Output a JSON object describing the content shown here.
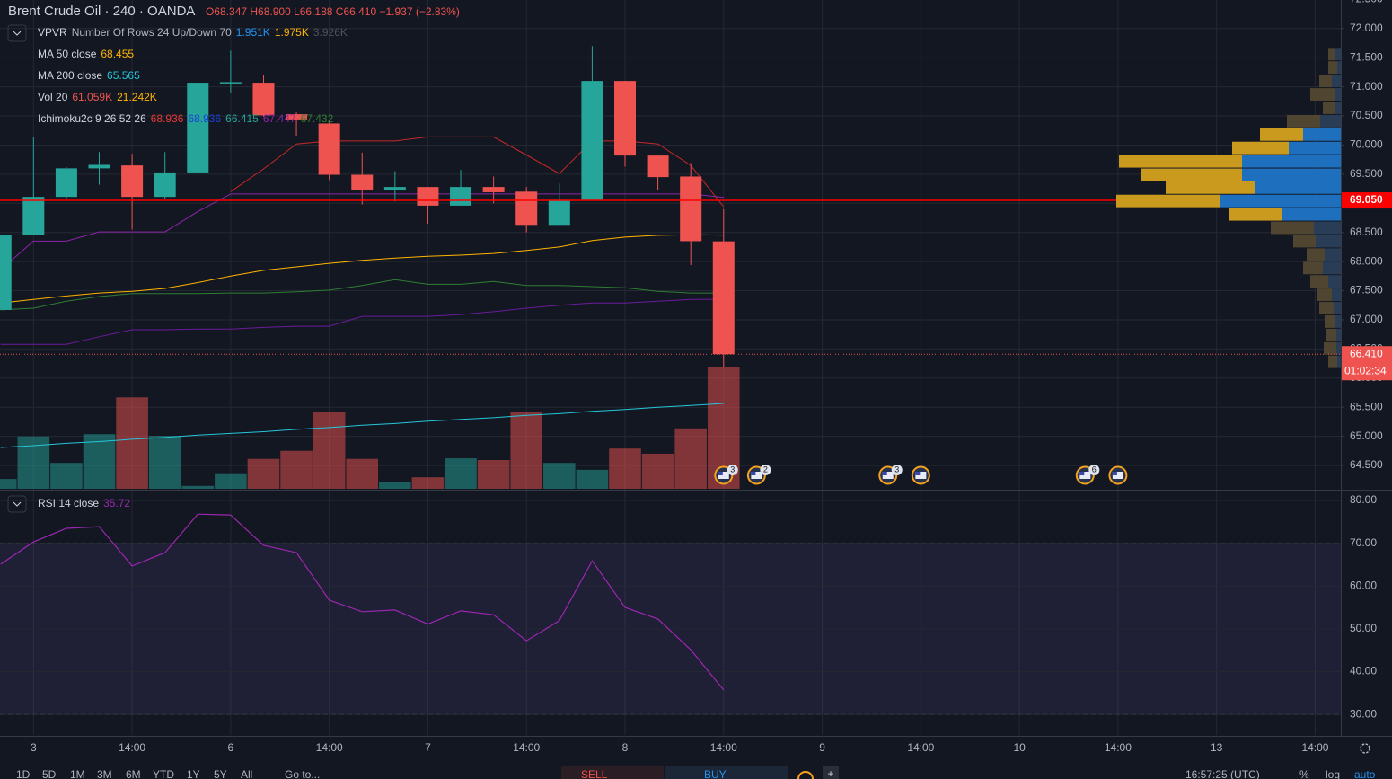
{
  "header": {
    "title": "Brent Crude Oil · 240 · OANDA",
    "quote": "O68.347 H68.900 L66.188 C66.410 −1.937 (−2.83%)"
  },
  "legends": [
    {
      "label": "VPVR",
      "params": "Number Of Rows 24 Up/Down 70",
      "values": [
        {
          "text": "1.951K",
          "color": "#2196f3"
        },
        {
          "text": "1.975K",
          "color": "#ffb300"
        },
        {
          "text": "3.926K",
          "color": "#50535e"
        }
      ]
    },
    {
      "label": "MA 50 close",
      "values": [
        {
          "text": "68.455",
          "color": "#ffb300"
        }
      ]
    },
    {
      "label": "MA 200 close",
      "values": [
        {
          "text": "65.565",
          "color": "#26c6da"
        }
      ]
    },
    {
      "label": "Vol 20",
      "values": [
        {
          "text": "61.059K",
          "color": "#ef5350"
        },
        {
          "text": "21.242K",
          "color": "#ffb300"
        }
      ]
    },
    {
      "label": "Ichimoku2c 9 26 52 26",
      "values": [
        {
          "text": "68.936",
          "color": "#e53935"
        },
        {
          "text": "68.936",
          "color": "#1e40d8"
        },
        {
          "text": "66.415",
          "color": "#26a69a"
        },
        {
          "text": "67.447",
          "color": "#8e24aa"
        },
        {
          "text": "67.432",
          "color": "#2e7d32"
        }
      ]
    }
  ],
  "chart_data": [
    {
      "type": "candlestick",
      "open": [
        67.17,
        68.45,
        69.11,
        69.6,
        69.65,
        69.11,
        69.53,
        71.06,
        71.07,
        70.53,
        70.37,
        69.49,
        69.22,
        69.28,
        68.96,
        69.28,
        69.2,
        68.63,
        69.06,
        71.1,
        69.82,
        69.46,
        68.347
      ],
      "high": [
        68.45,
        70.14,
        69.62,
        69.88,
        69.85,
        69.88,
        71.07,
        71.62,
        71.2,
        70.56,
        70.42,
        69.87,
        69.55,
        69.28,
        69.57,
        69.46,
        69.28,
        69.34,
        71.7,
        71.1,
        69.82,
        69.69,
        68.9
      ],
      "low": [
        67.17,
        68.45,
        69.08,
        69.32,
        68.55,
        69.08,
        69.53,
        70.9,
        70.49,
        70.16,
        69.4,
        68.98,
        69.03,
        68.65,
        68.96,
        69.0,
        68.5,
        68.63,
        69.06,
        69.63,
        69.23,
        67.94,
        66.188
      ],
      "close": [
        68.45,
        69.11,
        69.6,
        69.66,
        69.11,
        69.53,
        71.07,
        71.08,
        70.51,
        70.44,
        69.49,
        69.22,
        69.28,
        68.96,
        69.28,
        69.19,
        68.63,
        69.06,
        71.1,
        69.82,
        69.45,
        68.35,
        66.41
      ],
      "up_color": "#26a69a",
      "down_color": "#ef5350",
      "volume": [
        1.7,
        9.1,
        4.5,
        9.5,
        15.9,
        9.2,
        0.5,
        2.7,
        5.2,
        6.6,
        13.3,
        5.2,
        1.1,
        2.0,
        5.3,
        5.0,
        13.3,
        4.5,
        3.3,
        7.0,
        6.1,
        10.5,
        21.2
      ],
      "volume_lim": [
        0,
        85
      ],
      "series": [
        {
          "color": "#2e7d32",
          "values": [
            67.17,
            67.2,
            67.32,
            67.4,
            67.45,
            67.45,
            67.45,
            67.46,
            67.46,
            67.48,
            67.51,
            67.59,
            67.69,
            67.61,
            67.61,
            67.66,
            67.59,
            67.59,
            67.57,
            67.55,
            67.49,
            67.46,
            67.46
          ]
        },
        {
          "color": "#6a1b9a",
          "values": [
            66.58,
            66.58,
            66.58,
            66.71,
            66.83,
            66.83,
            66.84,
            66.84,
            66.87,
            66.89,
            66.89,
            67.06,
            67.06,
            67.06,
            67.09,
            67.14,
            67.2,
            67.25,
            67.29,
            67.29,
            67.32,
            67.35,
            67.35
          ]
        },
        {
          "color": "#26c6da",
          "values": [
            64.81,
            64.84,
            64.88,
            64.91,
            64.95,
            64.98,
            65.02,
            65.05,
            65.08,
            65.12,
            65.15,
            65.19,
            65.22,
            65.26,
            65.29,
            65.32,
            65.36,
            65.39,
            65.43,
            65.46,
            65.5,
            65.53,
            65.565
          ]
        },
        {
          "color": "#ffb300",
          "values": [
            67.29,
            67.35,
            67.41,
            67.46,
            67.49,
            67.54,
            67.64,
            67.75,
            67.85,
            67.91,
            67.97,
            68.02,
            68.06,
            68.09,
            68.11,
            68.14,
            68.19,
            68.25,
            68.36,
            68.42,
            68.45,
            68.46,
            68.455
          ]
        },
        {
          "color": "#8e24aa",
          "values": [
            67.86,
            68.35,
            68.35,
            68.51,
            68.51,
            68.51,
            68.86,
            69.16,
            69.16,
            69.16,
            69.16,
            69.16,
            69.16,
            69.16,
            69.16,
            69.16,
            69.16,
            69.16,
            69.16,
            69.16,
            69.16,
            69.16,
            69.1
          ]
        },
        {
          "color": "#c62828",
          "values": [
            null,
            null,
            null,
            null,
            null,
            null,
            null,
            69.2,
            69.59,
            70.02,
            70.07,
            70.07,
            70.07,
            70.14,
            70.14,
            70.14,
            69.83,
            69.51,
            70.07,
            70.07,
            70.02,
            69.65,
            68.94
          ]
        }
      ],
      "xlim": [
        -0.02,
        40.78
      ],
      "xticks": [
        {
          "value": 1,
          "label": "3"
        },
        {
          "value": 4,
          "label": "14:00"
        },
        {
          "value": 7,
          "label": "6"
        },
        {
          "value": 10,
          "label": "14:00"
        },
        {
          "value": 13,
          "label": "7"
        },
        {
          "value": 16,
          "label": "14:00"
        },
        {
          "value": 19,
          "label": "8"
        },
        {
          "value": 22,
          "label": "14:00"
        },
        {
          "value": 25,
          "label": "9"
        },
        {
          "value": 28,
          "label": "14:00"
        },
        {
          "value": 31,
          "label": "10"
        },
        {
          "value": 34,
          "label": "14:00"
        },
        {
          "value": 37,
          "label": "13"
        },
        {
          "value": 40,
          "label": "14:00"
        }
      ],
      "ylim": [
        64.1,
        72.49
      ],
      "yticks": [
        {
          "value": 72.5,
          "label": "72.500"
        },
        {
          "value": 72,
          "label": "72.000"
        },
        {
          "value": 71.5,
          "label": "71.500"
        },
        {
          "value": 71,
          "label": "71.000"
        },
        {
          "value": 70.5,
          "label": "70.500"
        },
        {
          "value": 70,
          "label": "70.000"
        },
        {
          "value": 69.5,
          "label": "69.500"
        },
        {
          "value": 69,
          "label": "69.000"
        },
        {
          "value": 68.5,
          "label": "68.500"
        },
        {
          "value": 68,
          "label": "68.000"
        },
        {
          "value": 67.5,
          "label": "67.500"
        },
        {
          "value": 67,
          "label": "67.000"
        },
        {
          "value": 66.5,
          "label": "66.500"
        },
        {
          "value": 66,
          "label": "66.000"
        },
        {
          "value": 65.5,
          "label": "65.500"
        },
        {
          "value": 65,
          "label": "65.000"
        },
        {
          "value": 64.5,
          "label": "64.500"
        }
      ],
      "grid": true,
      "hline": {
        "value": 69.05,
        "label": "69.050",
        "color": "#ff0000"
      },
      "last_price": {
        "value": 66.41,
        "label": "66.410",
        "countdown": "01:02:34",
        "color": "#ef5350"
      },
      "profile": {
        "up_color": "#c99a1e",
        "down_color": "#1e6fbe",
        "dim_up_color": "#4f4530",
        "dim_down_color": "#2a3d57",
        "value_area": [
          68.81,
          70.18
        ],
        "rows": [
          {
            "price": 71.56,
            "up": 8,
            "down": 6
          },
          {
            "price": 71.33,
            "up": 10,
            "down": 4
          },
          {
            "price": 71.1,
            "up": 14,
            "down": 10
          },
          {
            "price": 70.87,
            "up": 28,
            "down": 6
          },
          {
            "price": 70.64,
            "up": 14,
            "down": 6
          },
          {
            "price": 70.41,
            "up": 37,
            "down": 23
          },
          {
            "price": 70.18,
            "up": 48,
            "down": 42
          },
          {
            "price": 69.95,
            "up": 63,
            "down": 58
          },
          {
            "price": 69.72,
            "up": 137,
            "down": 110
          },
          {
            "price": 69.49,
            "up": 113,
            "down": 110
          },
          {
            "price": 69.27,
            "up": 100,
            "down": 95
          },
          {
            "price": 69.04,
            "up": 115,
            "down": 135
          },
          {
            "price": 68.81,
            "up": 60,
            "down": 65
          },
          {
            "price": 68.58,
            "up": 48,
            "down": 30
          },
          {
            "price": 68.35,
            "up": 25,
            "down": 28
          },
          {
            "price": 68.12,
            "up": 20,
            "down": 18
          },
          {
            "price": 67.89,
            "up": 22,
            "down": 20
          },
          {
            "price": 67.66,
            "up": 20,
            "down": 14
          },
          {
            "price": 67.43,
            "up": 16,
            "down": 10
          },
          {
            "price": 67.2,
            "up": 16,
            "down": 8
          },
          {
            "price": 66.97,
            "up": 12,
            "down": 6
          },
          {
            "price": 66.74,
            "up": 12,
            "down": 5
          },
          {
            "price": 66.51,
            "up": 14,
            "down": 5
          },
          {
            "price": 66.28,
            "up": 10,
            "down": 4
          }
        ]
      },
      "events": [
        {
          "bar": 22,
          "badge": "3"
        },
        {
          "bar": 23,
          "badge": "2"
        },
        {
          "bar": 27,
          "badge": "3"
        },
        {
          "bar": 28
        },
        {
          "bar": 33,
          "badge": "6"
        },
        {
          "bar": 34
        }
      ]
    },
    {
      "type": "line",
      "legend": "RSI 14 close",
      "series": [
        {
          "color": "#9c27b0",
          "values": [
            65.1,
            70.3,
            73.5,
            73.9,
            64.7,
            67.8,
            76.8,
            76.6,
            69.5,
            67.8,
            56.7,
            54.0,
            54.4,
            51.1,
            54.2,
            53.3,
            47.2,
            51.9,
            65.9,
            55.0,
            52.3,
            45.1,
            35.72
          ]
        }
      ],
      "band": [
        30,
        70
      ],
      "ylim": [
        25.2,
        82.1
      ],
      "yticks": [
        {
          "value": 80,
          "label": "80.00"
        },
        {
          "value": 70,
          "label": "70.00"
        },
        {
          "value": 60,
          "label": "60.00"
        },
        {
          "value": 50,
          "label": "50.00"
        },
        {
          "value": 40,
          "label": "40.00"
        },
        {
          "value": 30,
          "label": "30.00"
        }
      ]
    }
  ],
  "toolbar": {
    "ranges": [
      "1D",
      "5D",
      "1M",
      "3M",
      "6M",
      "YTD",
      "1Y",
      "5Y",
      "All"
    ],
    "goto": "Go to...",
    "sell": "SELL",
    "buy": "BUY",
    "clock": "16:57:25 (UTC)",
    "percent": "%",
    "log": "log",
    "auto": "auto"
  }
}
